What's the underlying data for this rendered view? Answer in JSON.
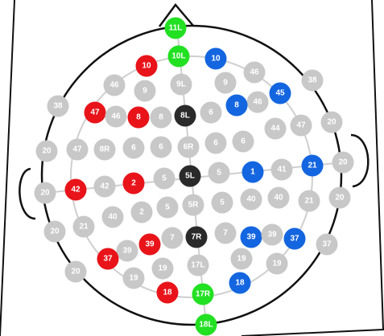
{
  "nodes": [
    {
      "label": "11L"
    },
    {
      "label": "10L"
    },
    {
      "label": "10"
    },
    {
      "label": "10"
    },
    {
      "label": "46"
    },
    {
      "label": "38"
    },
    {
      "label": "46"
    },
    {
      "label": "9"
    },
    {
      "label": "9L"
    },
    {
      "label": "9"
    },
    {
      "label": "45"
    },
    {
      "label": "46"
    },
    {
      "label": "8"
    },
    {
      "label": "38"
    },
    {
      "label": "47"
    },
    {
      "label": "46"
    },
    {
      "label": "8"
    },
    {
      "label": "8"
    },
    {
      "label": "8L"
    },
    {
      "label": "6"
    },
    {
      "label": "44"
    },
    {
      "label": "47"
    },
    {
      "label": "20"
    },
    {
      "label": "20"
    },
    {
      "label": "47"
    },
    {
      "label": "8R"
    },
    {
      "label": "6"
    },
    {
      "label": "6"
    },
    {
      "label": "6R"
    },
    {
      "label": "6"
    },
    {
      "label": "6"
    },
    {
      "label": "20"
    },
    {
      "label": "21"
    },
    {
      "label": "41"
    },
    {
      "label": "1"
    },
    {
      "label": "5"
    },
    {
      "label": "5L"
    },
    {
      "label": "5"
    },
    {
      "label": "2"
    },
    {
      "label": "42"
    },
    {
      "label": "42"
    },
    {
      "label": "20"
    },
    {
      "label": "5R"
    },
    {
      "label": "5"
    },
    {
      "label": "40"
    },
    {
      "label": "40"
    },
    {
      "label": "21"
    },
    {
      "label": "20"
    },
    {
      "label": "5"
    },
    {
      "label": "2"
    },
    {
      "label": "40"
    },
    {
      "label": "21"
    },
    {
      "label": "20"
    },
    {
      "label": "7R"
    },
    {
      "label": "7"
    },
    {
      "label": "7"
    },
    {
      "label": "39"
    },
    {
      "label": "39"
    },
    {
      "label": "37"
    },
    {
      "label": "37"
    },
    {
      "label": "39"
    },
    {
      "label": "39"
    },
    {
      "label": "37"
    },
    {
      "label": "20"
    },
    {
      "label": "19"
    },
    {
      "label": "17L"
    },
    {
      "label": "19"
    },
    {
      "label": "19"
    },
    {
      "label": "19"
    },
    {
      "label": "18"
    },
    {
      "label": "18"
    },
    {
      "label": "17R"
    },
    {
      "label": "18L"
    }
  ]
}
